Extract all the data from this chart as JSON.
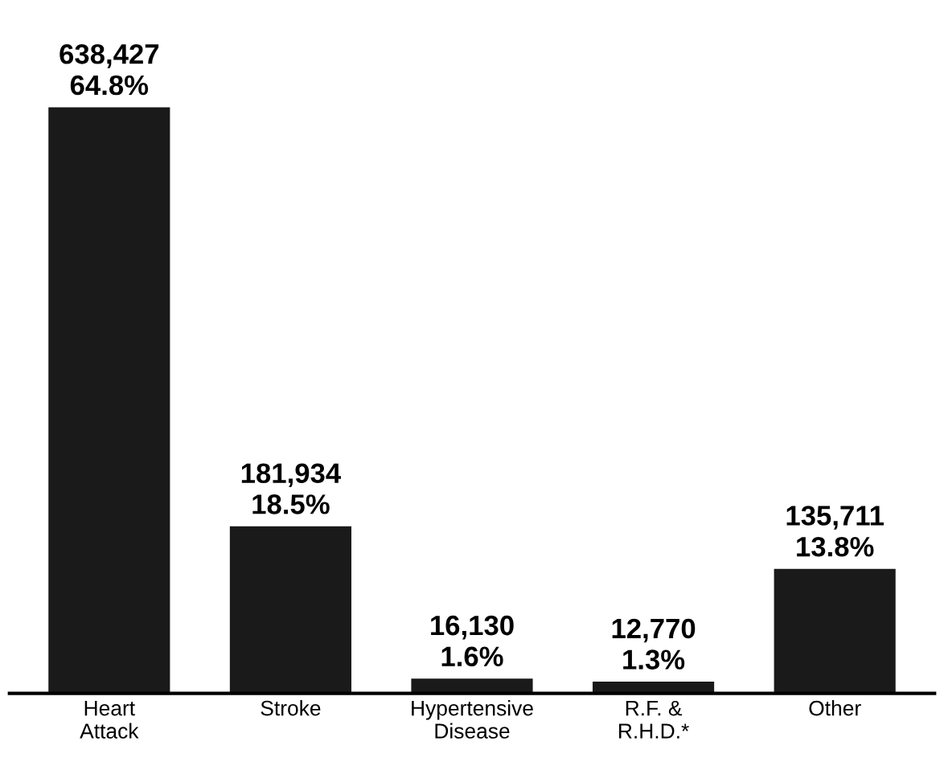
{
  "chart_data": {
    "type": "bar",
    "categories": [
      "Heart\nAttack",
      "Stroke",
      "Hypertensive\nDisease",
      "R.F. &\nR.H.D.*",
      "Other"
    ],
    "series": [
      {
        "color": "#1a1a1a",
        "values": [
          638427,
          181934,
          16130,
          12770,
          135711
        ],
        "value_labels": [
          "638,427\n64.8%",
          "181,934\n18.5%",
          "16,130\n1.6%",
          "12,770\n1.3%",
          "135,711\n13.8%"
        ]
      }
    ],
    "grid": false,
    "legend": false
  }
}
